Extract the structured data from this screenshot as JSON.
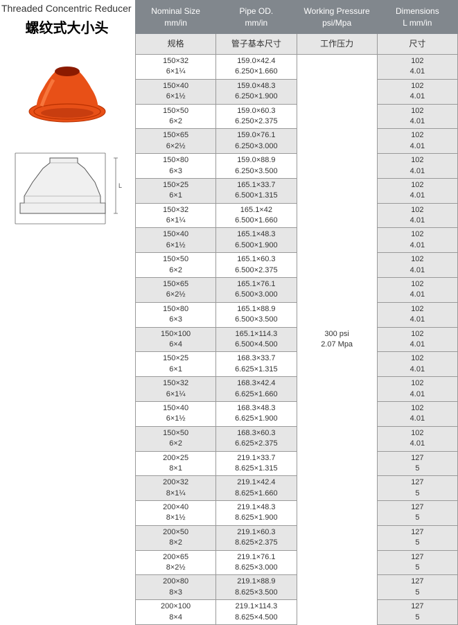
{
  "title_en": "Threaded Concentric Reducer",
  "title_cn": "螺纹式大小头",
  "headers": {
    "nominal": "Nominal Size\nmm/in",
    "pipe_od": "Pipe OD.\nmm/in",
    "pressure": "Working  Pressure\npsi/Mpa",
    "dimensions": "Dimensions\nL mm/in"
  },
  "subheaders": {
    "nominal": "规格",
    "pipe_od": "管子基本尺寸",
    "pressure": "工作压力",
    "dimensions": "尺寸"
  },
  "pressure_value": "300 psi\n2.07 Mpa",
  "rows": [
    {
      "nom": "150×32\n6×1¼",
      "od": "159.0×42.4\n6.250×1.660",
      "dim": "102\n4.01"
    },
    {
      "nom": "150×40\n6×1½",
      "od": "159.0×48.3\n6.250×1.900",
      "dim": "102\n4.01"
    },
    {
      "nom": "150×50\n6×2",
      "od": "159.0×60.3\n6.250×2.375",
      "dim": "102\n4.01"
    },
    {
      "nom": "150×65\n6×2½",
      "od": "159.0×76.1\n6.250×3.000",
      "dim": "102\n4.01"
    },
    {
      "nom": "150×80\n6×3",
      "od": "159.0×88.9\n6.250×3.500",
      "dim": "102\n4.01"
    },
    {
      "nom": "150×25\n6×1",
      "od": "165.1×33.7\n6.500×1.315",
      "dim": "102\n4.01"
    },
    {
      "nom": "150×32\n6×1¼",
      "od": "165.1×42\n6.500×1.660",
      "dim": "102\n4.01"
    },
    {
      "nom": "150×40\n6×1½",
      "od": "165.1×48.3\n6.500×1.900",
      "dim": "102\n4.01"
    },
    {
      "nom": "150×50\n6×2",
      "od": "165.1×60.3\n6.500×2.375",
      "dim": "102\n4.01"
    },
    {
      "nom": "150×65\n6×2½",
      "od": "165.1×76.1\n6.500×3.000",
      "dim": "102\n4.01"
    },
    {
      "nom": "150×80\n6×3",
      "od": "165.1×88.9\n6.500×3.500",
      "dim": "102\n4.01"
    },
    {
      "nom": "150×100\n6×4",
      "od": "165.1×114.3\n6.500×4.500",
      "dim": "102\n4.01"
    },
    {
      "nom": "150×25\n6×1",
      "od": "168.3×33.7\n6.625×1.315",
      "dim": "102\n4.01"
    },
    {
      "nom": "150×32\n6×1¼",
      "od": "168.3×42.4\n6.625×1.660",
      "dim": "102\n4.01"
    },
    {
      "nom": "150×40\n6×1½",
      "od": "168.3×48.3\n6.625×1.900",
      "dim": "102\n4.01"
    },
    {
      "nom": "150×50\n6×2",
      "od": "168.3×60.3\n6.625×2.375",
      "dim": "102\n4.01"
    },
    {
      "nom": "200×25\n8×1",
      "od": "219.1×33.7\n8.625×1.315",
      "dim": "127\n5"
    },
    {
      "nom": "200×32\n8×1¼",
      "od": "219.1×42.4\n8.625×1.660",
      "dim": "127\n5"
    },
    {
      "nom": "200×40\n8×1½",
      "od": "219.1×48.3\n8.625×1.900",
      "dim": "127\n5"
    },
    {
      "nom": "200×50\n8×2",
      "od": "219.1×60.3\n8.625×2.375",
      "dim": "127\n5"
    },
    {
      "nom": "200×65\n8×2½",
      "od": "219.1×76.1\n8.625×3.000",
      "dim": "127\n5"
    },
    {
      "nom": "200×80\n8×3",
      "od": "219.1×88.9\n8.625×3.500",
      "dim": "127\n5"
    },
    {
      "nom": "200×100\n8×4",
      "od": "219.1×114.3\n8.625×4.500",
      "dim": "127\n5"
    }
  ],
  "colors": {
    "header_bg": "#81878d",
    "subhead_bg": "#e6e6e6",
    "stripe_bg": "#e6e6e6",
    "product_red": "#e85017"
  },
  "col_widths": {
    "nominal": 115,
    "od": 115,
    "pressure": 115,
    "dim": 115
  }
}
